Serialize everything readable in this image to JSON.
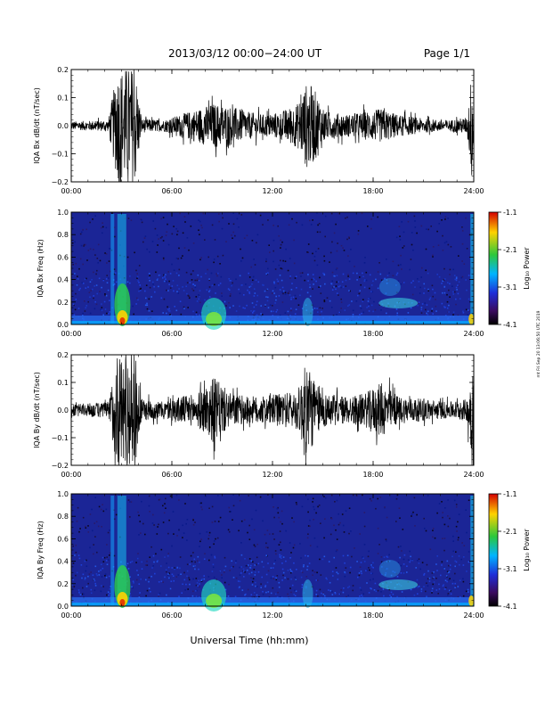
{
  "header": {
    "date_range": "2013/03/12  00:00−24:00 UT",
    "page": "Page 1/1"
  },
  "footer": {
    "xlabel": "Universal Time (hh:mm)",
    "side_stamp": "mt Fri Sep 20 13:06:50 UTC 2019"
  },
  "colorbar": {
    "label": "Log₁₀ Power",
    "ticks": [
      "-1.1",
      "-2.1",
      "-3.1",
      "-4.1"
    ],
    "colors": [
      "#d40000",
      "#ffd200",
      "#2cc83c",
      "#00b4ff",
      "#1e2ed8",
      "#3a0a5e",
      "#000000"
    ]
  },
  "chart_data": [
    {
      "type": "line",
      "ylabel": "IQA Bx dB/dt (nT/sec)",
      "ylim": [
        -0.2,
        0.2
      ],
      "yticks": [
        "0.2",
        "0.1",
        "0.0",
        "−0.1",
        "−0.2"
      ],
      "xticks": [
        "00:00",
        "06:00",
        "12:00",
        "18:00",
        "24:00"
      ],
      "xlim_hours": [
        0,
        24
      ],
      "envelope_hours": [
        0,
        2.2,
        2.6,
        2.8,
        3.0,
        3.8,
        4.2,
        5.5,
        6.5,
        7.5,
        8.5,
        9.5,
        10.5,
        11.5,
        12.5,
        13.5,
        14.1,
        14.6,
        15.2,
        16.5,
        17.5,
        18.5,
        19.5,
        21,
        22.5,
        23.6,
        23.9,
        24
      ],
      "envelope_amplitude": [
        0.015,
        0.02,
        0.15,
        0.21,
        0.21,
        0.21,
        0.025,
        0.02,
        0.04,
        0.06,
        0.08,
        0.07,
        0.05,
        0.04,
        0.05,
        0.08,
        0.16,
        0.12,
        0.05,
        0.04,
        0.05,
        0.06,
        0.04,
        0.025,
        0.02,
        0.03,
        0.21,
        0.21
      ],
      "grid": false
    },
    {
      "type": "heatmap",
      "ylabel": "IQA Bx Freq (Hz)",
      "ylim": [
        0.0,
        1.0
      ],
      "yticks": [
        "1.0",
        "0.8",
        "0.6",
        "0.4",
        "0.2",
        "0.0"
      ],
      "xticks": [
        "00:00",
        "06:00",
        "12:00",
        "18:00",
        "24:00"
      ],
      "zlim": [
        -4.1,
        -1.1
      ],
      "z_label": "Log₁₀ Power"
    },
    {
      "type": "line",
      "ylabel": "IQA By dB/dt (nT/sec)",
      "ylim": [
        -0.2,
        0.2
      ],
      "yticks": [
        "0.2",
        "0.1",
        "0.0",
        "−0.1",
        "−0.2"
      ],
      "xticks": [
        "00:00",
        "06:00",
        "12:00",
        "18:00",
        "24:00"
      ],
      "xlim_hours": [
        0,
        24
      ],
      "envelope_hours": [
        0,
        2.2,
        2.6,
        2.8,
        3.0,
        3.8,
        4.2,
        5.5,
        6.5,
        7.5,
        8.5,
        9.5,
        10.5,
        11.5,
        12.5,
        13.5,
        14.1,
        14.6,
        15.2,
        16.5,
        17.5,
        18.5,
        19.5,
        21,
        22.5,
        23.6,
        23.9,
        24
      ],
      "envelope_amplitude": [
        0.02,
        0.03,
        0.16,
        0.21,
        0.21,
        0.21,
        0.04,
        0.03,
        0.05,
        0.06,
        0.12,
        0.06,
        0.05,
        0.05,
        0.06,
        0.07,
        0.19,
        0.09,
        0.06,
        0.05,
        0.06,
        0.1,
        0.05,
        0.04,
        0.03,
        0.04,
        0.21,
        0.21
      ],
      "grid": false
    },
    {
      "type": "heatmap",
      "ylabel": "IQA By Freq (Hz)",
      "ylim": [
        0.0,
        1.0
      ],
      "yticks": [
        "1.0",
        "0.8",
        "0.6",
        "0.4",
        "0.2",
        "0.0"
      ],
      "xticks": [
        "00:00",
        "06:00",
        "12:00",
        "18:00",
        "24:00"
      ],
      "zlim": [
        -4.1,
        -1.1
      ],
      "z_label": "Log₁₀ Power"
    }
  ]
}
